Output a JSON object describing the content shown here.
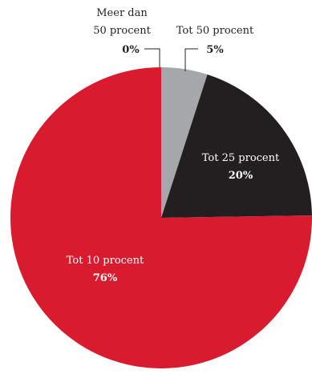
{
  "chart_data": {
    "type": "pie",
    "title": "",
    "slices": [
      {
        "label": "Tot 10 procent",
        "value_label": "76%",
        "value": 76,
        "color": "#d81b2e"
      },
      {
        "label": "Meer dan 50 procent",
        "label_lines": [
          "Meer dan",
          "50 procent"
        ],
        "value_label": "0%",
        "value": 0,
        "color": "#ffffff"
      },
      {
        "label": "Tot 50 procent",
        "value_label": "5%",
        "value": 5,
        "color": "#a5a7aa"
      },
      {
        "label": "Tot 25 procent",
        "value_label": "20%",
        "value": 20,
        "color": "#231f20"
      }
    ],
    "start_angle_deg": 0,
    "direction": "clockwise"
  }
}
